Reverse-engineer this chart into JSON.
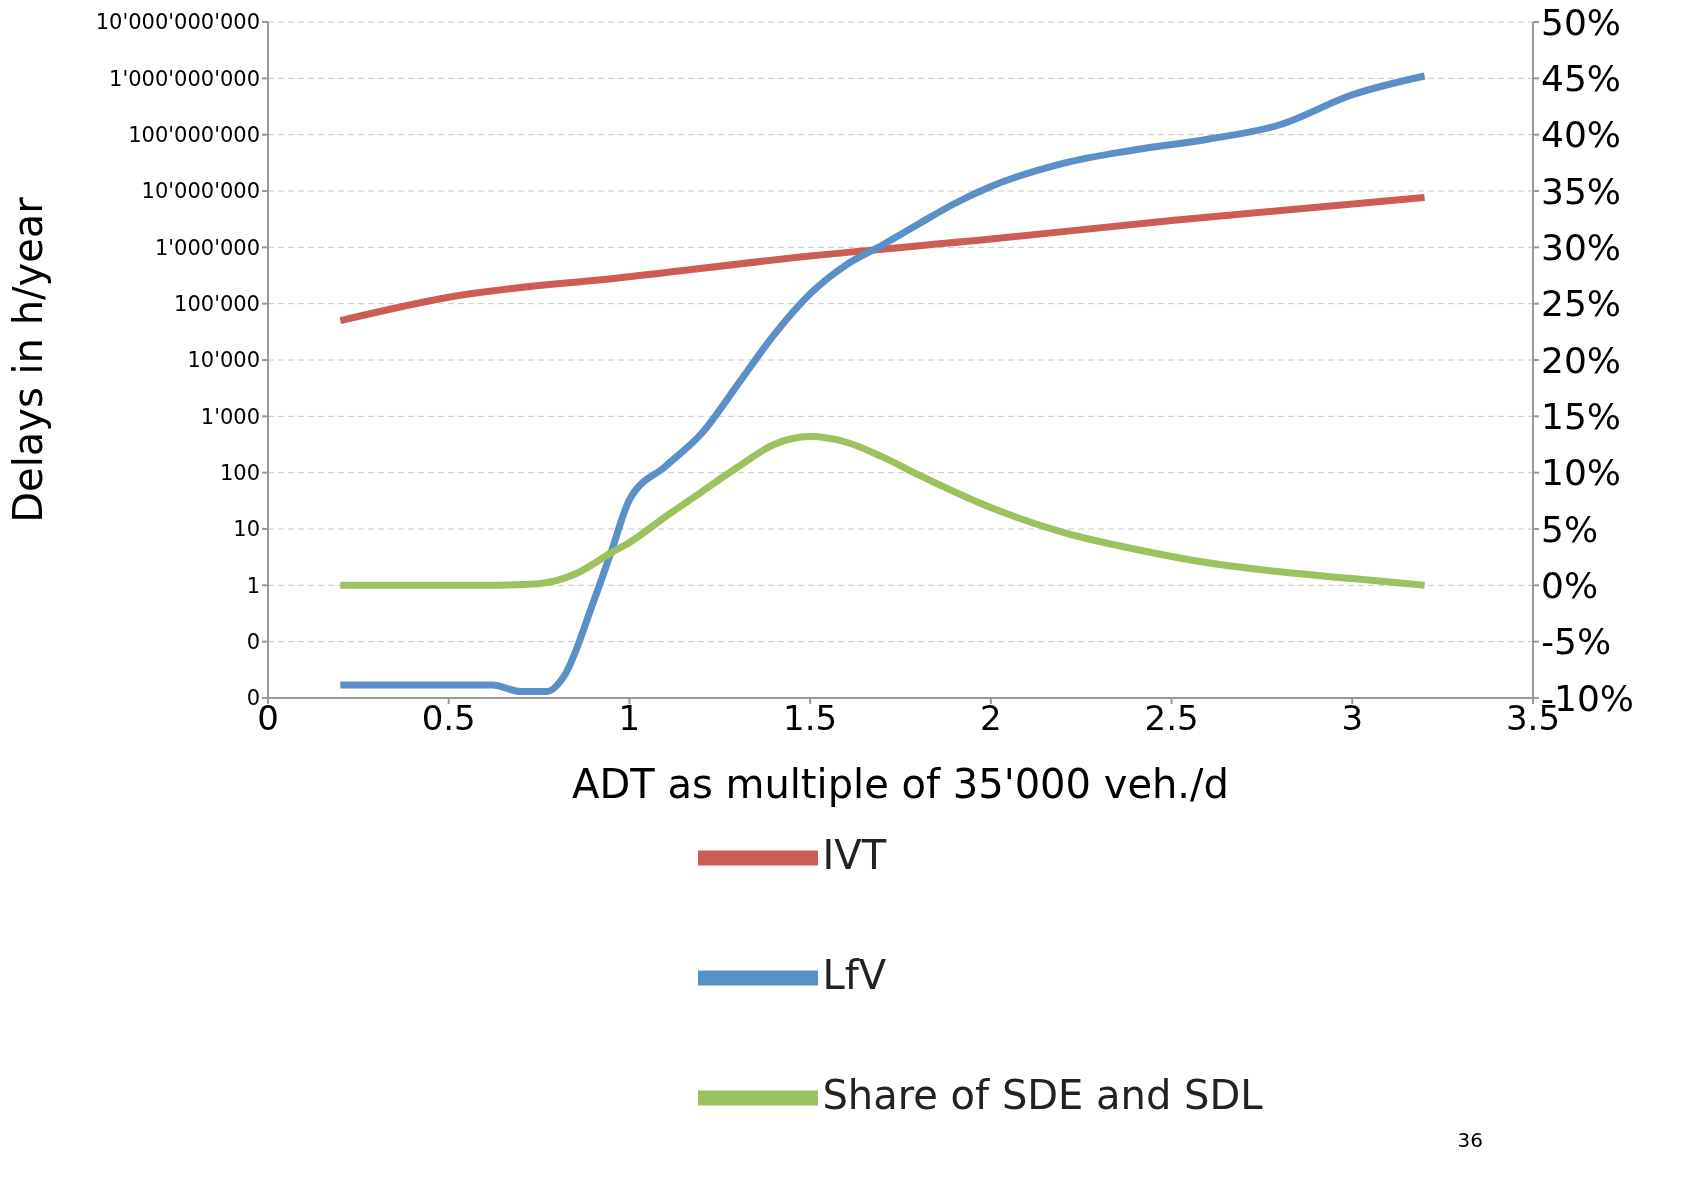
{
  "chart_data": {
    "type": "line",
    "xlabel": "ADT as multiple of 35'000 veh./d",
    "ylabel": "Delays in h/year",
    "xlim": [
      0,
      3.5
    ],
    "xticks": [
      0,
      0.5,
      1,
      1.5,
      2,
      2.5,
      3,
      3.5
    ],
    "log": "y",
    "ylim": [
      0.01,
      10000000000
    ],
    "yticks": [
      {
        "value": 0.01,
        "label": "0"
      },
      {
        "value": 0.1,
        "label": "0"
      },
      1,
      10,
      100,
      {
        "value": 1000,
        "label": "1'000"
      },
      {
        "value": 10000,
        "label": "10'000"
      },
      {
        "value": 100000,
        "label": "100'000"
      },
      {
        "value": 1000000,
        "label": "1'000'000"
      },
      {
        "value": 10000000,
        "label": "10'000'000"
      },
      {
        "value": 100000000,
        "label": "100'000'000"
      },
      {
        "value": 1000000000,
        "label": "1'000'000'000"
      },
      {
        "value": 10000000000,
        "label": "10'000'000'000"
      }
    ],
    "y2lim": [
      -10,
      50
    ],
    "y2ticks": [
      {
        "value": -10,
        "label": "-10%"
      },
      {
        "value": -5,
        "label": "-5%"
      },
      {
        "value": 0,
        "label": "0%"
      },
      {
        "value": 5,
        "label": "5%"
      },
      {
        "value": 10,
        "label": "10%"
      },
      {
        "value": 15,
        "label": "15%"
      },
      {
        "value": 20,
        "label": "20%"
      },
      {
        "value": 25,
        "label": "25%"
      },
      {
        "value": 30,
        "label": "30%"
      },
      {
        "value": 35,
        "label": "35%"
      },
      {
        "value": 40,
        "label": "40%"
      },
      {
        "value": 45,
        "label": "45%"
      },
      {
        "value": 50,
        "label": "50%"
      }
    ],
    "grid": "y",
    "legend": "bottom",
    "marker": "none",
    "line_style": "solid",
    "series": [
      {
        "name": "IVT",
        "color": "#cd5c55",
        "x": [
          0.2,
          0.5,
          1.0,
          1.5,
          2.0,
          2.5,
          3.2
        ],
        "values": [
          50000,
          130000,
          300000,
          700000,
          1400000,
          3000000,
          7700000
        ]
      },
      {
        "name": "LfV",
        "color": "#5b8fc8",
        "x": [
          0.2,
          0.62,
          0.7,
          0.77,
          0.82,
          0.9,
          0.95,
          1.0,
          1.1,
          1.2,
          1.3,
          1.4,
          1.5,
          1.6,
          1.7,
          1.8,
          1.9,
          2.0,
          2.2,
          2.4,
          2.6,
          2.8,
          3.0,
          3.2
        ],
        "values": [
          0.017,
          0.017,
          0.013,
          0.013,
          0.025,
          0.5,
          4,
          33,
          130,
          500,
          3700,
          28000,
          150000,
          490000,
          1100000,
          2600000,
          6000000,
          12000000,
          31000000,
          54000000,
          83000000,
          150000000,
          510000000,
          1100000000
        ]
      },
      {
        "name": "Share of SDE and SDL",
        "color": "#9cc25e",
        "axis": "y2",
        "x": [
          0.2,
          0.6,
          0.75,
          0.85,
          0.95,
          1.0,
          1.1,
          1.2,
          1.3,
          1.4,
          1.5,
          1.6,
          1.7,
          1.8,
          2.0,
          2.2,
          2.4,
          2.6,
          2.8,
          3.0,
          3.2
        ],
        "values": [
          0,
          0,
          0.15,
          1,
          2.9,
          3.8,
          6.1,
          8.3,
          10.5,
          12.5,
          13.2,
          12.7,
          11.4,
          9.8,
          6.9,
          4.7,
          3.2,
          2.0,
          1.2,
          0.6,
          0
        ]
      }
    ],
    "annotations": [
      "36"
    ]
  }
}
